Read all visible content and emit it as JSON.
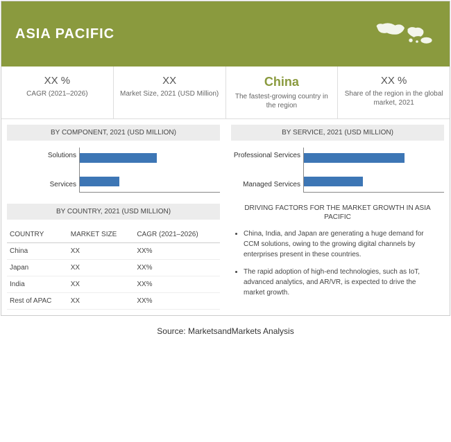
{
  "header": {
    "title": "ASIA PACIFIC",
    "header_bg": "#8a9a3e",
    "header_text_color": "#ffffff"
  },
  "metrics": [
    {
      "value": "XX %",
      "label": "CAGR (2021–2026)",
      "highlight": false
    },
    {
      "value": "XX",
      "label": "Market Size, 2021 (USD Million)",
      "highlight": false
    },
    {
      "value": "China",
      "label": "The fastest-growing country in the region",
      "highlight": true
    },
    {
      "value": "XX %",
      "label": "Share of the region in the global market, 2021",
      "highlight": false
    }
  ],
  "chart_component": {
    "title": "BY COMPONENT, 2021 (USD MILLION)",
    "bars": [
      {
        "label": "Solutions",
        "width_pct": 55
      },
      {
        "label": "Services",
        "width_pct": 28
      }
    ],
    "bar_color": "#3d76b5",
    "axis_color": "#888888"
  },
  "chart_service": {
    "title": "BY SERVICE, 2021 (USD MILLION)",
    "bars": [
      {
        "label": "Professional Services",
        "width_pct": 72
      },
      {
        "label": "Managed Services",
        "width_pct": 42
      }
    ],
    "bar_color": "#3d76b5",
    "axis_color": "#888888"
  },
  "country_section": {
    "title": "BY COUNTRY, 2021 (USD MILLION)",
    "columns": [
      "COUNTRY",
      "MARKET SIZE",
      "CAGR (2021–2026)"
    ],
    "rows": [
      [
        "China",
        "XX",
        "XX%"
      ],
      [
        "Japan",
        "XX",
        "XX%"
      ],
      [
        "India",
        "XX",
        "XX%"
      ],
      [
        "Rest of APAC",
        "XX",
        "XX%"
      ]
    ]
  },
  "factors": {
    "title": "DRIVING FACTORS FOR THE MARKET GROWTH IN ASIA PACIFIC",
    "items": [
      "China, India, and Japan are generating a huge demand for CCM solutions, owing to the growing digital channels by enterprises present in these countries.",
      "The rapid adoption of high-end technologies, such as IoT, advanced analytics, and AR/VR, is expected to drive the market growth."
    ]
  },
  "source": "Source: MarketsandMarkets Analysis"
}
